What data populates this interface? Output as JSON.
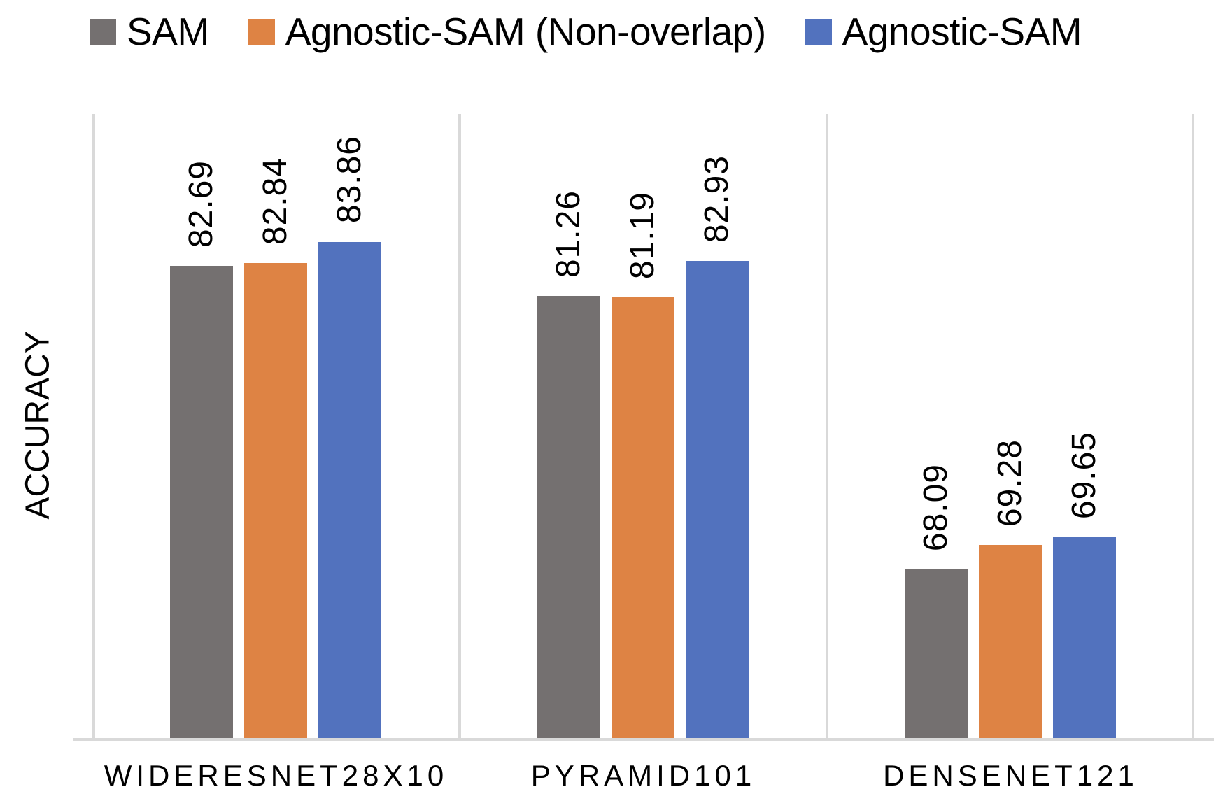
{
  "chart": {
    "background_color": "#FFFFFF",
    "axis_line_color": "#D9D9D9",
    "text_color": "#000000"
  },
  "legend": {
    "position": "top",
    "items": [
      {
        "label": "SAM",
        "color": "#747070"
      },
      {
        "label": "Agnostic-SAM (Non-overlap)",
        "color": "#DE8344"
      },
      {
        "label": "Agnostic-SAM",
        "color": "#5272BE"
      }
    ]
  },
  "chart_data": {
    "type": "bar",
    "title": "",
    "categories": [
      "WIDERESNET28X10",
      "PYRAMID101",
      "DENSENET121"
    ],
    "series": [
      {
        "name": "SAM",
        "color": "#747070",
        "values": [
          82.69,
          81.26,
          68.09
        ]
      },
      {
        "name": "Agnostic-SAM (Non-overlap)",
        "color": "#DE8344",
        "values": [
          82.84,
          81.19,
          69.28
        ]
      },
      {
        "name": "Agnostic-SAM",
        "color": "#5272BE",
        "values": [
          83.86,
          82.93,
          69.65
        ]
      }
    ],
    "xlabel": "",
    "ylabel": "ACCURACY",
    "ylim": [
      60,
      90
    ],
    "y_axis_ticks_visible": false,
    "grid": "vertical category separators only",
    "legend_position": "top",
    "data_labels": "above bars, rotated 90 degrees, two decimals"
  }
}
